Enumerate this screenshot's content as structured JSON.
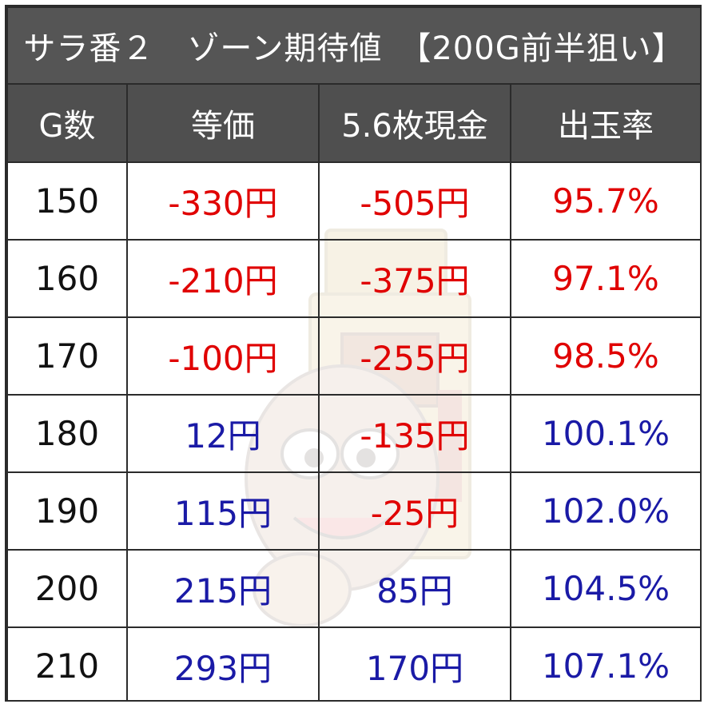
{
  "title": "サラ番２　ゾーン期待値　【200G前半狙い】",
  "headers": [
    "G数",
    "等価",
    "5.6枚現金",
    "出玉率"
  ],
  "colors": {
    "header_bg": "#4f4f4f",
    "negative": "#e00000",
    "positive": "#1a1aa6",
    "neutral": "#111111"
  },
  "rows": [
    {
      "games": "150",
      "equal": "-330円",
      "cash": "-505円",
      "rate": "95.7%",
      "equal_color": "red",
      "cash_color": "red",
      "rate_color": "red"
    },
    {
      "games": "160",
      "equal": "-210円",
      "cash": "-375円",
      "rate": "97.1%",
      "equal_color": "red",
      "cash_color": "red",
      "rate_color": "red"
    },
    {
      "games": "170",
      "equal": "-100円",
      "cash": "-255円",
      "rate": "98.5%",
      "equal_color": "red",
      "cash_color": "red",
      "rate_color": "red"
    },
    {
      "games": "180",
      "equal": "12円",
      "cash": "-135円",
      "rate": "100.1%",
      "equal_color": "blue",
      "cash_color": "red",
      "rate_color": "blue"
    },
    {
      "games": "190",
      "equal": "115円",
      "cash": "-25円",
      "rate": "102.0%",
      "equal_color": "blue",
      "cash_color": "red",
      "rate_color": "blue"
    },
    {
      "games": "200",
      "equal": "215円",
      "cash": "85円",
      "rate": "104.5%",
      "equal_color": "blue",
      "cash_color": "blue",
      "rate_color": "blue"
    },
    {
      "games": "210",
      "equal": "293円",
      "cash": "170円",
      "rate": "107.1%",
      "equal_color": "blue",
      "cash_color": "blue",
      "rate_color": "blue"
    }
  ]
}
